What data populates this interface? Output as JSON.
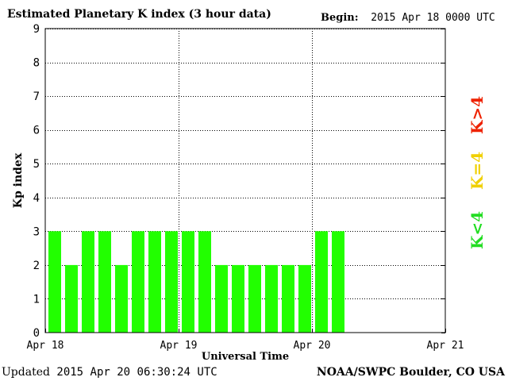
{
  "title": "Estimated Planetary K index (3 hour data)",
  "begin": {
    "label": "Begin:",
    "value": "2015 Apr 18 0000 UTC"
  },
  "updated": {
    "label": "Updated",
    "value": "2015 Apr 20 06:30:24 UTC"
  },
  "credit": "NOAA/SWPC Boulder, CO USA",
  "legend": [
    {
      "text": "K<4",
      "color": "#22dd22"
    },
    {
      "text": "K=4",
      "color": "#f0d000"
    },
    {
      "text": "K>4",
      "color": "#ee2200"
    }
  ],
  "chart_data": {
    "type": "bar",
    "title": "Estimated Planetary K index (3 hour data)",
    "xlabel": "Universal Time",
    "ylabel": "Kp index",
    "ylim": [
      0,
      9
    ],
    "yticks": [
      "0",
      "1",
      "2",
      "3",
      "4",
      "5",
      "6",
      "7",
      "8",
      "9"
    ],
    "xticks": [
      "Apr 18",
      "Apr 19",
      "Apr 20",
      "Apr 21"
    ],
    "bins_per_day": 8,
    "grid": true,
    "bar_color": "#22ff00",
    "categories": [
      "Apr 18 00",
      "Apr 18 03",
      "Apr 18 06",
      "Apr 18 09",
      "Apr 18 12",
      "Apr 18 15",
      "Apr 18 18",
      "Apr 18 21",
      "Apr 19 00",
      "Apr 19 03",
      "Apr 19 06",
      "Apr 19 09",
      "Apr 19 12",
      "Apr 19 15",
      "Apr 19 18",
      "Apr 19 21",
      "Apr 20 00",
      "Apr 20 03"
    ],
    "values": [
      3,
      2,
      3,
      3,
      2,
      3,
      3,
      3,
      3,
      3,
      2,
      2,
      2,
      2,
      2,
      2,
      3,
      3
    ]
  }
}
